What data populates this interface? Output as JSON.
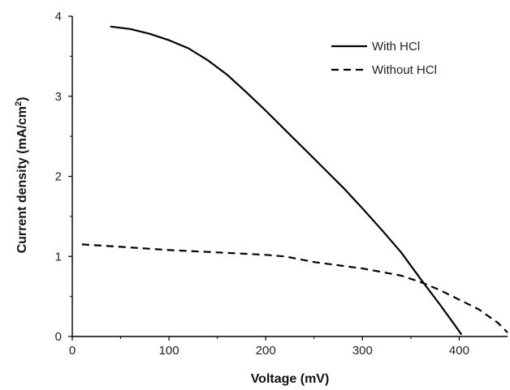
{
  "chart_data": {
    "type": "line",
    "xlabel": "Voltage (mV)",
    "ylabel_main": "Current density (mA/cm",
    "ylabel_sup": "2",
    "ylabel_end": ")",
    "xlim": [
      0,
      450
    ],
    "ylim": [
      0,
      4
    ],
    "xticks": [
      0,
      100,
      200,
      300,
      400
    ],
    "yticks": [
      0,
      1,
      2,
      3,
      4
    ],
    "legend_position": "top-right",
    "grid": false,
    "series": [
      {
        "name": "With HCl",
        "line_style": "solid",
        "color": "#000000",
        "x": [
          40,
          60,
          80,
          100,
          120,
          140,
          160,
          180,
          200,
          220,
          240,
          260,
          280,
          300,
          320,
          340,
          360,
          380,
          395,
          402
        ],
        "y": [
          3.87,
          3.84,
          3.78,
          3.7,
          3.6,
          3.45,
          3.27,
          3.05,
          2.82,
          2.58,
          2.34,
          2.1,
          1.86,
          1.6,
          1.33,
          1.05,
          0.72,
          0.4,
          0.15,
          0.03
        ]
      },
      {
        "name": "Without HCl",
        "line_style": "dashed",
        "color": "#000000",
        "x": [
          10,
          50,
          100,
          150,
          200,
          220,
          250,
          300,
          340,
          360,
          380,
          400,
          420,
          440,
          450
        ],
        "y": [
          1.15,
          1.12,
          1.08,
          1.05,
          1.02,
          1.0,
          0.93,
          0.85,
          0.76,
          0.68,
          0.58,
          0.46,
          0.34,
          0.17,
          0.05
        ]
      }
    ]
  }
}
